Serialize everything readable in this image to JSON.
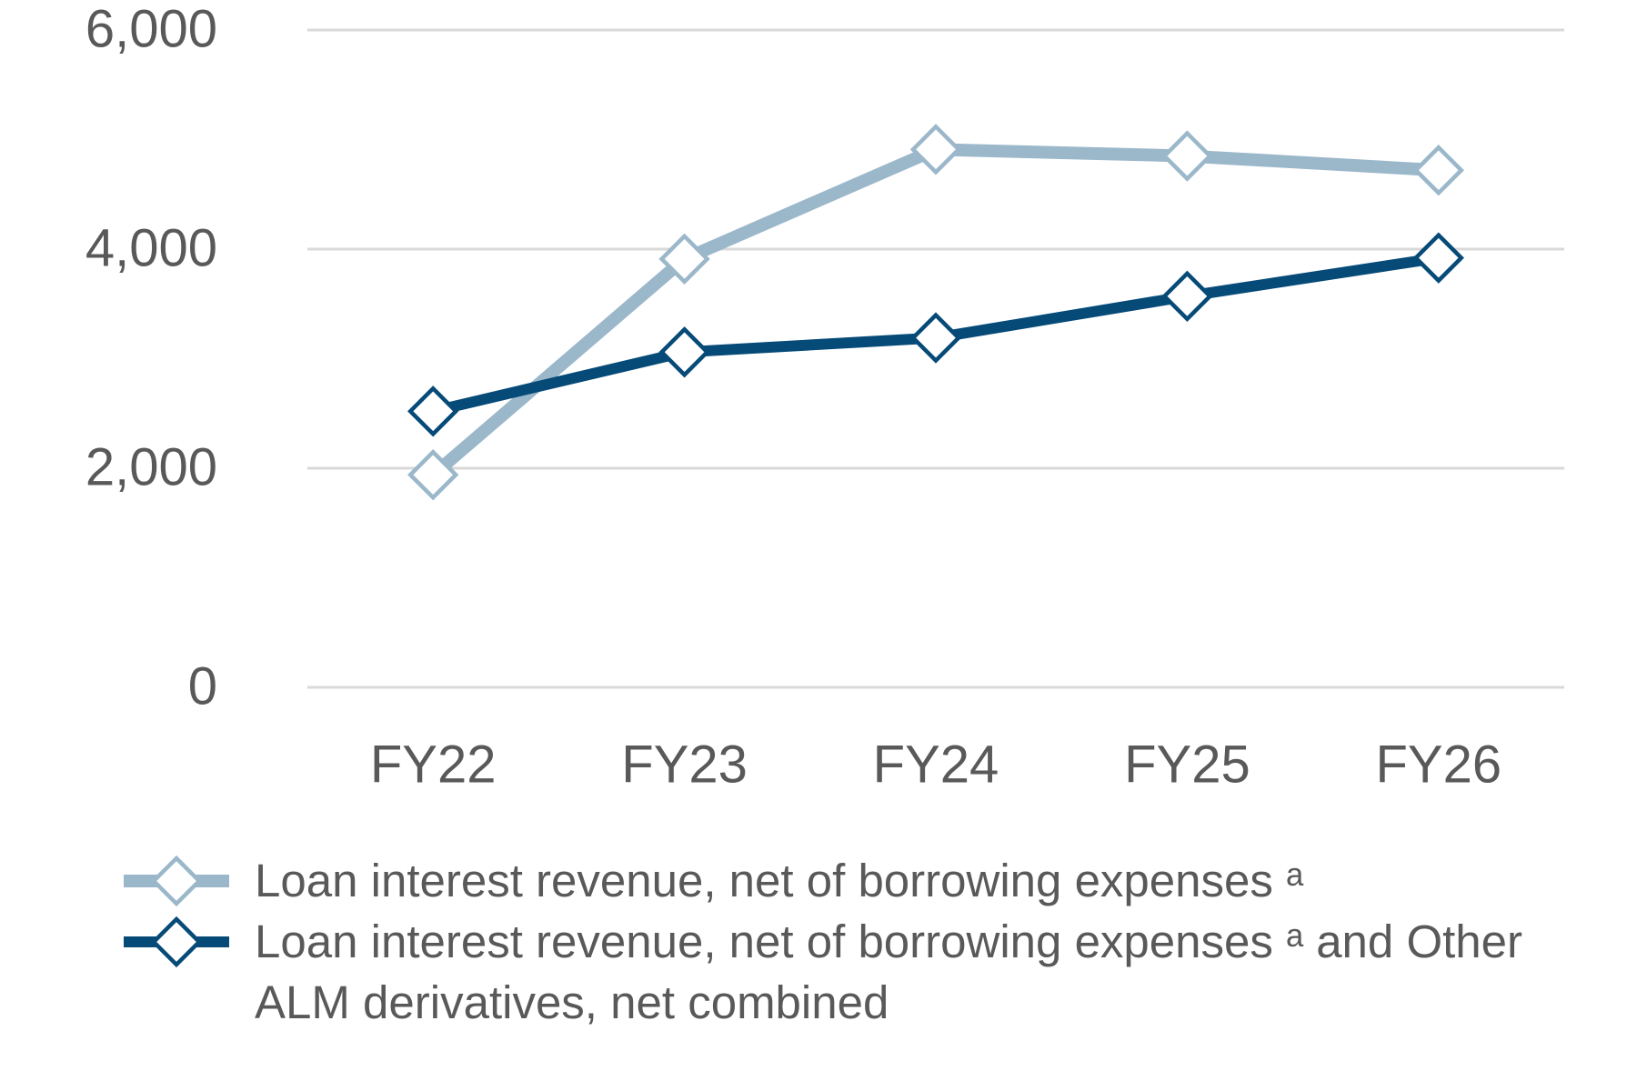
{
  "chart_data": {
    "type": "line",
    "categories": [
      "FY22",
      "FY23",
      "FY24",
      "FY25",
      "FY26"
    ],
    "series": [
      {
        "name": "Loan interest revenue, net of borrowing expenses ᵃ",
        "color": "#9bb7ca",
        "values": [
          1940,
          3910,
          4910,
          4850,
          4720
        ]
      },
      {
        "name": "Loan interest revenue, net of borrowing expenses ᵃ and Other ALM derivatives, net combined",
        "color": "#064a78",
        "values": [
          2520,
          3060,
          3190,
          3570,
          3920
        ]
      }
    ],
    "ylim": [
      0,
      6000
    ],
    "yticks": [
      0,
      {
        "value": 2000,
        "label": "2,000"
      },
      {
        "value": 4000,
        "label": "4,000"
      },
      {
        "value": 6000,
        "label": "6,000"
      }
    ],
    "grid": true
  }
}
